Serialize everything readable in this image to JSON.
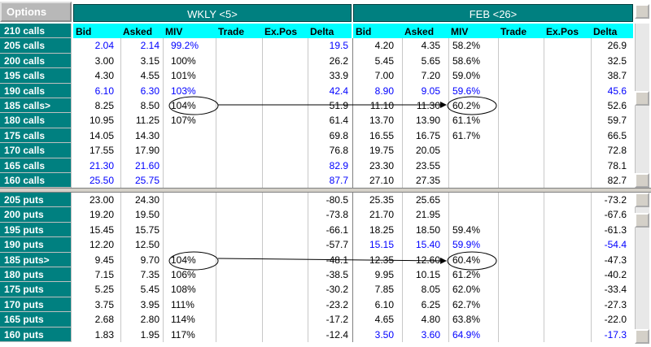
{
  "header": {
    "corner": "Options"
  },
  "groups": [
    {
      "title": "WKLY <5>",
      "columns": [
        "Bid",
        "Asked",
        "MIV",
        "Trade",
        "Ex.Pos",
        "Delta"
      ]
    },
    {
      "title": "FEB <26>",
      "columns": [
        "Bid",
        "Asked",
        "MIV",
        "Trade",
        "Ex.Pos",
        "Delta"
      ]
    }
  ],
  "calls": {
    "rows": [
      {
        "label": "210 calls"
      },
      {
        "label": "205 calls",
        "cells": [
          [
            "2.04",
            "2.14",
            "99.2%",
            null,
            null,
            "19.5"
          ],
          [
            "4.20",
            "4.35",
            "58.2%",
            null,
            null,
            "26.9"
          ]
        ],
        "highlight": [
          0
        ]
      },
      {
        "label": "200 calls",
        "cells": [
          [
            "3.00",
            "3.15",
            "100%",
            null,
            null,
            "26.2"
          ],
          [
            "5.45",
            "5.65",
            "58.6%",
            null,
            null,
            "32.5"
          ]
        ],
        "highlight": []
      },
      {
        "label": "195 calls",
        "cells": [
          [
            "4.30",
            "4.55",
            "101%",
            null,
            null,
            "33.9"
          ],
          [
            "7.00",
            "7.20",
            "59.0%",
            null,
            null,
            "38.7"
          ]
        ],
        "highlight": []
      },
      {
        "label": "190 calls",
        "cells": [
          [
            "6.10",
            "6.30",
            "103%",
            null,
            null,
            "42.4"
          ],
          [
            "8.90",
            "9.05",
            "59.6%",
            null,
            null,
            "45.6"
          ]
        ],
        "highlight": [
          0,
          1
        ]
      },
      {
        "label": "185 calls>",
        "cells": [
          [
            "8.25",
            "8.50",
            "104%",
            null,
            null,
            "51.9"
          ],
          [
            "11.10",
            "11.30",
            "60.2%",
            null,
            null,
            "52.6"
          ]
        ],
        "highlight": []
      },
      {
        "label": "180 calls",
        "cells": [
          [
            "10.95",
            "11.25",
            "107%",
            null,
            null,
            "61.4"
          ],
          [
            "13.70",
            "13.90",
            "61.1%",
            null,
            null,
            "59.7"
          ]
        ],
        "highlight": []
      },
      {
        "label": "175 calls",
        "cells": [
          [
            "14.05",
            "14.30",
            null,
            null,
            null,
            "69.8"
          ],
          [
            "16.55",
            "16.75",
            "61.7%",
            null,
            null,
            "66.5"
          ]
        ],
        "highlight": []
      },
      {
        "label": "170 calls",
        "cells": [
          [
            "17.55",
            "17.90",
            null,
            null,
            null,
            "76.8"
          ],
          [
            "19.75",
            "20.05",
            null,
            null,
            null,
            "72.8"
          ]
        ],
        "highlight": []
      },
      {
        "label": "165 calls",
        "cells": [
          [
            "21.30",
            "21.60",
            null,
            null,
            null,
            "82.9"
          ],
          [
            "23.30",
            "23.55",
            null,
            null,
            null,
            "78.1"
          ]
        ],
        "highlight": [
          0
        ]
      },
      {
        "label": "160 calls",
        "cells": [
          [
            "25.50",
            "25.75",
            null,
            null,
            null,
            "87.7"
          ],
          [
            "27.10",
            "27.35",
            null,
            null,
            null,
            "82.7"
          ]
        ],
        "highlight": [
          0
        ]
      }
    ]
  },
  "puts": {
    "rows": [
      {
        "label": "205 puts",
        "cells": [
          [
            "23.00",
            "24.30",
            null,
            null,
            null,
            "-80.5"
          ],
          [
            "25.35",
            "25.65",
            null,
            null,
            null,
            "-73.2"
          ]
        ],
        "highlight": []
      },
      {
        "label": "200 puts",
        "cells": [
          [
            "19.20",
            "19.50",
            null,
            null,
            null,
            "-73.8"
          ],
          [
            "21.70",
            "21.95",
            null,
            null,
            null,
            "-67.6"
          ]
        ],
        "highlight": []
      },
      {
        "label": "195 puts",
        "cells": [
          [
            "15.45",
            "15.75",
            null,
            null,
            null,
            "-66.1"
          ],
          [
            "18.25",
            "18.50",
            "59.4%",
            null,
            null,
            "-61.3"
          ]
        ],
        "highlight": []
      },
      {
        "label": "190 puts",
        "cells": [
          [
            "12.20",
            "12.50",
            null,
            null,
            null,
            "-57.7"
          ],
          [
            "15.15",
            "15.40",
            "59.9%",
            null,
            null,
            "-54.4"
          ]
        ],
        "highlight": [
          1
        ]
      },
      {
        "label": "185 puts>",
        "cells": [
          [
            "9.45",
            "9.70",
            "104%",
            null,
            null,
            "-48.1"
          ],
          [
            "12.35",
            "12.60",
            "60.4%",
            null,
            null,
            "-47.3"
          ]
        ],
        "highlight": []
      },
      {
        "label": "180 puts",
        "cells": [
          [
            "7.15",
            "7.35",
            "106%",
            null,
            null,
            "-38.5"
          ],
          [
            "9.95",
            "10.15",
            "61.2%",
            null,
            null,
            "-40.2"
          ]
        ],
        "highlight": []
      },
      {
        "label": "175 puts",
        "cells": [
          [
            "5.25",
            "5.45",
            "108%",
            null,
            null,
            "-30.2"
          ],
          [
            "7.85",
            "8.05",
            "62.0%",
            null,
            null,
            "-33.4"
          ]
        ],
        "highlight": []
      },
      {
        "label": "170 puts",
        "cells": [
          [
            "3.75",
            "3.95",
            "111%",
            null,
            null,
            "-23.2"
          ],
          [
            "6.10",
            "6.25",
            "62.7%",
            null,
            null,
            "-27.3"
          ]
        ],
        "highlight": []
      },
      {
        "label": "165 puts",
        "cells": [
          [
            "2.68",
            "2.80",
            "114%",
            null,
            null,
            "-17.2"
          ],
          [
            "4.65",
            "4.80",
            "63.8%",
            null,
            null,
            "-22.0"
          ]
        ],
        "highlight": []
      },
      {
        "label": "160 puts",
        "cells": [
          [
            "1.83",
            "1.95",
            "117%",
            null,
            null,
            "-12.4"
          ],
          [
            "3.50",
            "3.60",
            "64.9%",
            null,
            null,
            "-17.3"
          ]
        ],
        "highlight": [
          1
        ]
      }
    ]
  }
}
